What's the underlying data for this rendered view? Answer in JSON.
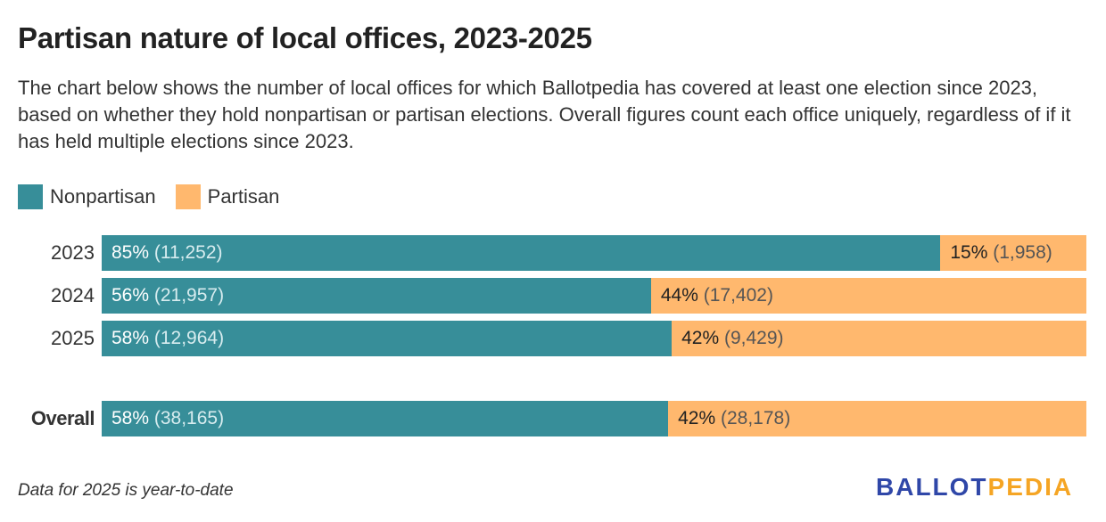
{
  "title": "Partisan nature of local offices, 2023-2025",
  "subtitle": "The chart below shows the number of local offices for which Ballotpedia has covered at least one election since 2023, based on whether they hold nonpartisan or partisan elections. Overall figures count each office uniquely, regardless of if it has held multiple elections since 2023.",
  "note": "Data for 2025 is year-to-date",
  "logo": {
    "part1": "BALLOT",
    "part2": "PEDIA",
    "color1": "#2F47A8",
    "color2": "#F5A524"
  },
  "chart_data": {
    "type": "bar",
    "stacked": "percent",
    "orientation": "horizontal",
    "legend_position": "top-left",
    "categories": [
      "2023",
      "2024",
      "2025",
      "Overall"
    ],
    "series": [
      {
        "name": "Nonpartisan",
        "color": "#378E99",
        "values": [
          11252,
          21957,
          12964,
          38165
        ],
        "labels": [
          {
            "pct": "85%",
            "cnt": "(11,252)"
          },
          {
            "pct": "56%",
            "cnt": "(21,957)"
          },
          {
            "pct": "58%",
            "cnt": "(12,964)"
          },
          {
            "pct": "58%",
            "cnt": "(38,165)"
          }
        ]
      },
      {
        "name": "Partisan",
        "color": "#FFB86E",
        "values": [
          1958,
          17402,
          9429,
          28178
        ],
        "labels": [
          {
            "pct": "15%",
            "cnt": "(1,958)"
          },
          {
            "pct": "44%",
            "cnt": "(17,402)"
          },
          {
            "pct": "42%",
            "cnt": "(9,429)"
          },
          {
            "pct": "42%",
            "cnt": "(28,178)"
          }
        ]
      }
    ]
  }
}
